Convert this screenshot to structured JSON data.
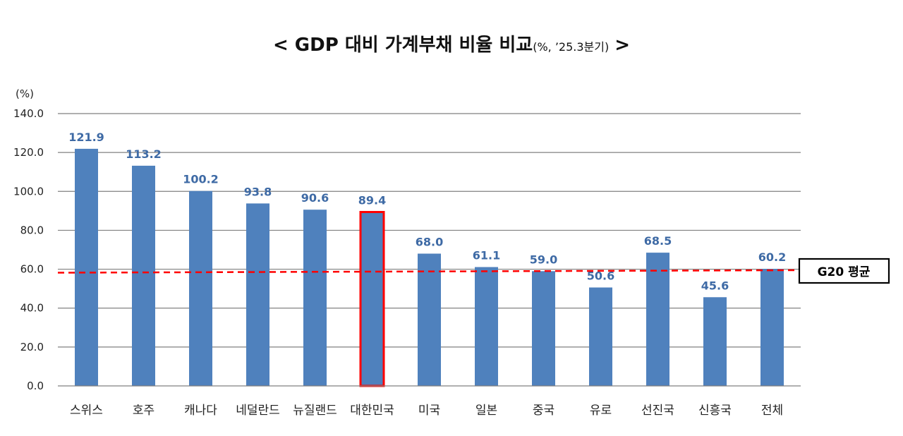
{
  "chart_data": {
    "type": "bar",
    "title": "< GDP 대비 가계부채 비율 비교",
    "subtitle": "(%, ’25.3분기)",
    "title_end": ">",
    "ylabel": "(%)",
    "ylim": [
      0,
      140
    ],
    "yticks": [
      "0.0",
      "20.0",
      "40.0",
      "60.0",
      "80.0",
      "100.0",
      "120.0",
      "140.0"
    ],
    "grid": true,
    "categories": [
      "스위스",
      "호주",
      "캐나다",
      "네덜란드",
      "뉴질랜드",
      "대한민국",
      "미국",
      "일본",
      "중국",
      "유로",
      "선진국",
      "신흥국",
      "전체"
    ],
    "values": [
      121.9,
      113.2,
      100.2,
      93.8,
      90.6,
      89.4,
      68.0,
      61.1,
      59.0,
      50.6,
      68.5,
      45.6,
      60.2
    ],
    "value_labels": [
      "121.9",
      "113.2",
      "100.2",
      "93.8",
      "90.6",
      "89.4",
      "68.0",
      "61.1",
      "59.0",
      "50.6",
      "68.5",
      "45.6",
      "60.2"
    ],
    "highlight_category": "대한민국",
    "reference_line": {
      "label": "G20 평균",
      "y_start": 58.2,
      "y_end": 59.5
    },
    "colors": {
      "bar": "#4f81bd",
      "value_label": "#3e6aa5",
      "highlight_border": "#ff0000",
      "reference_line": "#ff0000",
      "grid": "#808080"
    }
  }
}
